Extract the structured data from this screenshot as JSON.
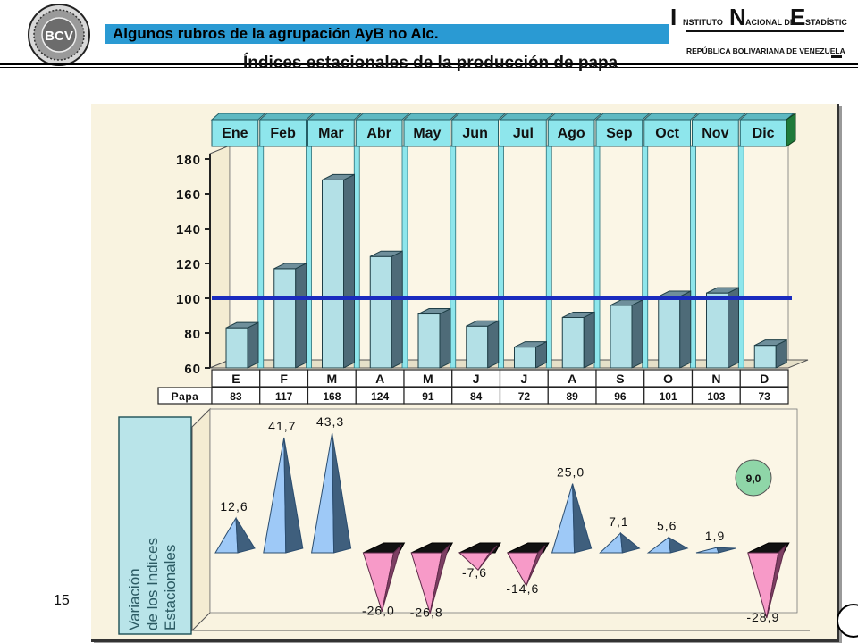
{
  "header": {
    "subtitle": "Algunos rubros de la agrupación AyB no Alc.",
    "title": "Índices estacionales de la producción de papa",
    "ine_logo": {
      "line1_big": "I",
      "line1_text": "NSTITUTO",
      "line1_big2": "N",
      "line1_text2": "ACIONAL DE",
      "line1_big3": "E",
      "line1_text3": "STADÍSTICA",
      "line2": "REPÚBLICA BOLIVARIANA DE VENEZUELA"
    },
    "bcv_logo_text": "BCV"
  },
  "page_number": "15",
  "chart_data": [
    {
      "type": "bar",
      "months_full": [
        "Ene",
        "Feb",
        "Mar",
        "Abr",
        "May",
        "Jun",
        "Jul",
        "Ago",
        "Sep",
        "Oct",
        "Nov",
        "Dic"
      ],
      "categories": [
        "E",
        "F",
        "M",
        "A",
        "M",
        "J",
        "J",
        "A",
        "S",
        "O",
        "N",
        "D"
      ],
      "series": [
        {
          "name": "Papa",
          "values": [
            83,
            117,
            168,
            124,
            91,
            84,
            72,
            89,
            96,
            101,
            103,
            73
          ]
        }
      ],
      "ylim": [
        60,
        180
      ],
      "yticks": [
        60,
        80,
        100,
        120,
        140,
        160,
        180
      ],
      "reference_line": 100,
      "colors": {
        "bar": "#b3e0e6",
        "reference": "#1a2bbf"
      }
    },
    {
      "type": "bar",
      "ylabel": "Variación de los Indices Estacionales",
      "values": [
        12.6,
        41.7,
        43.3,
        -26.0,
        -26.8,
        -7.6,
        -14.6,
        25.0,
        7.1,
        5.6,
        1.9,
        -28.9
      ],
      "labels": [
        "12,6",
        "41,7",
        "43,3",
        "-26,0",
        "-26,8",
        "-7,6",
        "-14,6",
        "25,0",
        "7,1",
        "5,6",
        "1,9",
        "-28,9"
      ],
      "annotation": "9,0",
      "colors": {
        "positive": "#9ec9f7",
        "negative": "#f79ac8"
      }
    }
  ]
}
